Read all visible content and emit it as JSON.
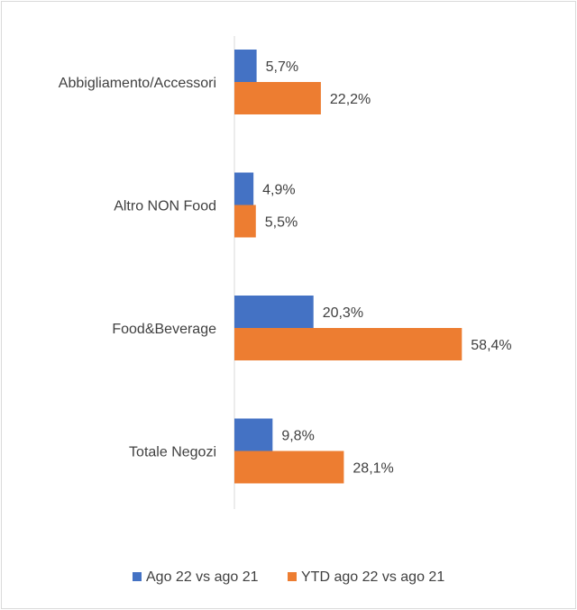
{
  "chart_data": {
    "type": "bar",
    "orientation": "horizontal",
    "categories": [
      "Abbigliamento/Accessori",
      "Altro NON Food",
      "Food&Beverage",
      "Totale Negozi"
    ],
    "series": [
      {
        "name": "Ago 22 vs ago 21",
        "color": "#4472C4",
        "values": [
          5.7,
          4.9,
          20.3,
          9.8
        ],
        "labels": [
          "5,7%",
          "4,9%",
          "20,3%",
          "9,8%"
        ]
      },
      {
        "name": "YTD ago 22 vs ago 21",
        "color": "#ED7D31",
        "values": [
          22.2,
          5.5,
          58.4,
          28.1
        ],
        "labels": [
          "22,2%",
          "5,5%",
          "58,4%",
          "28,1%"
        ]
      }
    ],
    "xlim": [
      0,
      60
    ],
    "grid": false,
    "legend": "bottom"
  }
}
